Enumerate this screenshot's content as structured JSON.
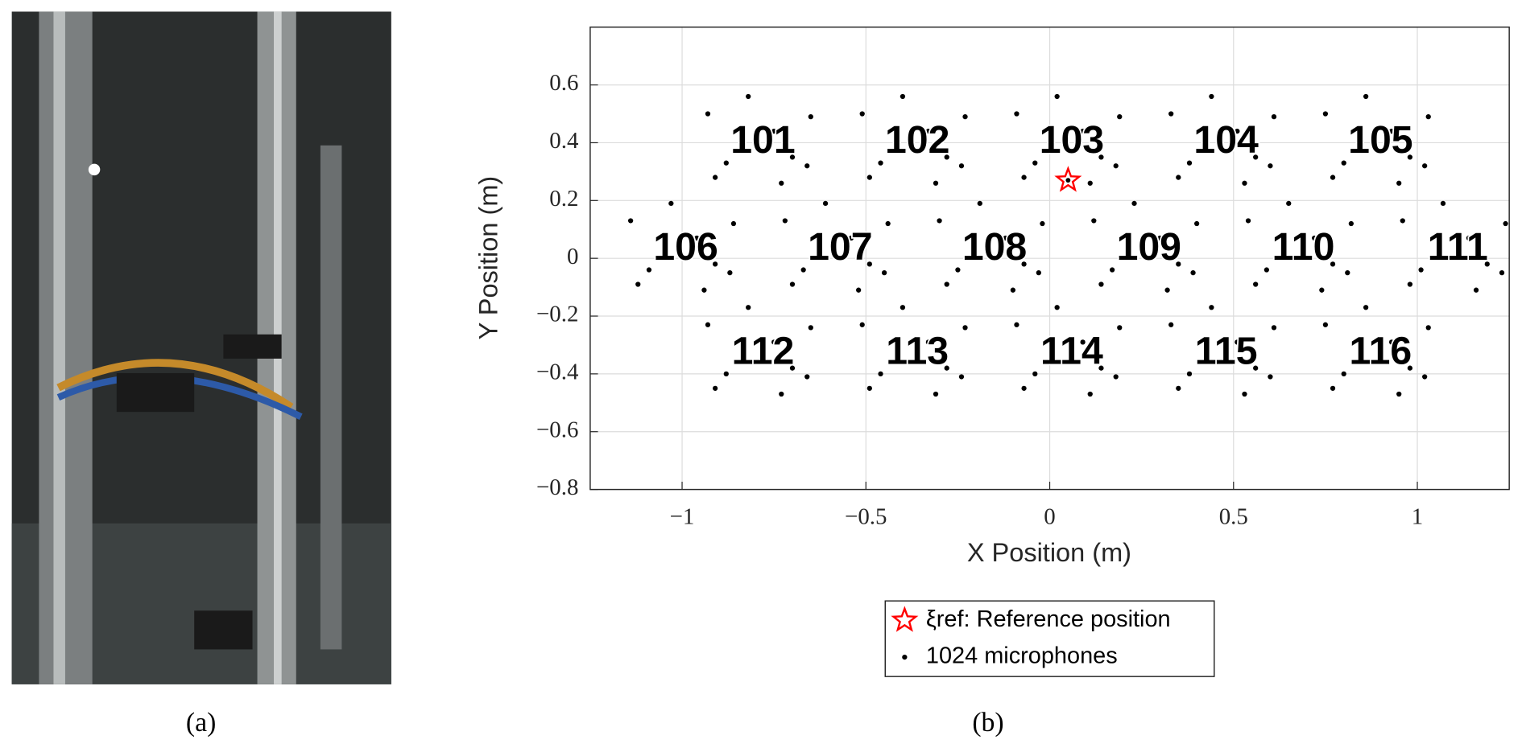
{
  "panels": {
    "a": {
      "caption": "(a)"
    },
    "b": {
      "caption": "(b)"
    }
  },
  "chart_data": {
    "type": "scatter",
    "xlabel": "X Position (m)",
    "ylabel": "Y Position (m)",
    "xlim": [
      -1.25,
      1.25
    ],
    "ylim": [
      -0.8,
      0.8
    ],
    "xticks": [
      {
        "value": -1,
        "label": "−1"
      },
      {
        "value": -0.5,
        "label": "−0.5"
      },
      0,
      0.5,
      1
    ],
    "yticks": [
      {
        "value": -0.8,
        "label": "−0.8"
      },
      {
        "value": -0.6,
        "label": "−0.6"
      },
      {
        "value": -0.4,
        "label": "−0.4"
      },
      {
        "value": -0.2,
        "label": "−0.2"
      },
      0,
      0.2,
      0.4,
      0.6
    ],
    "grid": true,
    "series": [
      {
        "name": "ξref: Reference position",
        "color": "#ff0000",
        "marker": "star",
        "x": [
          0.05
        ],
        "y": [
          0.27
        ]
      },
      {
        "name": "1024 microphones",
        "color": "#000000",
        "marker": "dot",
        "x": [
          -0.75,
          -0.84,
          -0.7,
          -0.88,
          -0.65,
          -0.93,
          -0.73,
          -0.82,
          -0.66,
          -0.91,
          -0.33,
          -0.42,
          -0.28,
          -0.46,
          -0.23,
          -0.51,
          -0.31,
          -0.4,
          -0.24,
          -0.49,
          0.09,
          0.0,
          0.14,
          -0.04,
          0.19,
          -0.09,
          0.11,
          0.02,
          0.18,
          -0.07,
          0.51,
          0.42,
          0.56,
          0.38,
          0.61,
          0.33,
          0.53,
          0.44,
          0.6,
          0.35,
          0.93,
          0.84,
          0.98,
          0.8,
          1.03,
          0.75,
          0.95,
          0.86,
          1.02,
          0.77,
          -0.96,
          -1.05,
          -0.91,
          -1.09,
          -0.86,
          -1.14,
          -0.94,
          -1.03,
          -0.87,
          -1.12,
          -0.54,
          -0.63,
          -0.49,
          -0.67,
          -0.44,
          -0.72,
          -0.52,
          -0.61,
          -0.45,
          -0.7,
          -0.12,
          -0.21,
          -0.07,
          -0.25,
          -0.02,
          -0.3,
          -0.1,
          -0.19,
          -0.03,
          -0.28,
          0.3,
          0.21,
          0.35,
          0.17,
          0.4,
          0.12,
          0.32,
          0.23,
          0.39,
          0.14,
          0.72,
          0.63,
          0.77,
          0.59,
          0.82,
          0.54,
          0.74,
          0.65,
          0.81,
          0.56,
          1.14,
          1.05,
          1.19,
          1.01,
          1.24,
          0.96,
          1.16,
          1.07,
          1.23,
          0.98,
          -0.75,
          -0.84,
          -0.7,
          -0.88,
          -0.65,
          -0.93,
          -0.73,
          -0.82,
          -0.66,
          -0.91,
          -0.33,
          -0.42,
          -0.28,
          -0.46,
          -0.23,
          -0.51,
          -0.31,
          -0.4,
          -0.24,
          -0.49,
          0.09,
          0.0,
          0.14,
          -0.04,
          0.19,
          -0.09,
          0.11,
          0.02,
          0.18,
          -0.07,
          0.51,
          0.42,
          0.56,
          0.38,
          0.61,
          0.33,
          0.53,
          0.44,
          0.6,
          0.35,
          0.93,
          0.84,
          0.98,
          0.8,
          1.03,
          0.75,
          0.95,
          0.86,
          1.02,
          0.77
        ],
        "y": [
          0.44,
          0.45,
          0.35,
          0.33,
          0.49,
          0.5,
          0.26,
          0.56,
          0.32,
          0.28,
          0.44,
          0.45,
          0.35,
          0.33,
          0.49,
          0.5,
          0.26,
          0.56,
          0.32,
          0.28,
          0.44,
          0.45,
          0.35,
          0.33,
          0.49,
          0.5,
          0.26,
          0.56,
          0.32,
          0.28,
          0.44,
          0.45,
          0.35,
          0.33,
          0.49,
          0.5,
          0.26,
          0.56,
          0.32,
          0.28,
          0.44,
          0.45,
          0.35,
          0.33,
          0.49,
          0.5,
          0.26,
          0.56,
          0.32,
          0.28,
          0.07,
          0.08,
          -0.02,
          -0.04,
          0.12,
          0.13,
          -0.11,
          0.19,
          -0.05,
          -0.09,
          0.07,
          0.08,
          -0.02,
          -0.04,
          0.12,
          0.13,
          -0.11,
          0.19,
          -0.05,
          -0.09,
          0.07,
          0.08,
          -0.02,
          -0.04,
          0.12,
          0.13,
          -0.11,
          0.19,
          -0.05,
          -0.09,
          0.07,
          0.08,
          -0.02,
          -0.04,
          0.12,
          0.13,
          -0.11,
          0.19,
          -0.05,
          -0.09,
          0.07,
          0.08,
          -0.02,
          -0.04,
          0.12,
          0.13,
          -0.11,
          0.19,
          -0.05,
          -0.09,
          0.07,
          0.08,
          -0.02,
          -0.04,
          0.12,
          0.13,
          -0.11,
          0.19,
          -0.05,
          -0.09,
          -0.29,
          -0.28,
          -0.38,
          -0.4,
          -0.24,
          -0.23,
          -0.47,
          -0.17,
          -0.41,
          -0.45,
          -0.29,
          -0.28,
          -0.38,
          -0.4,
          -0.24,
          -0.23,
          -0.47,
          -0.17,
          -0.41,
          -0.45,
          -0.29,
          -0.28,
          -0.38,
          -0.4,
          -0.24,
          -0.23,
          -0.47,
          -0.17,
          -0.41,
          -0.45,
          -0.29,
          -0.28,
          -0.38,
          -0.4,
          -0.24,
          -0.23,
          -0.47,
          -0.17,
          -0.41,
          -0.45,
          -0.29,
          -0.28,
          -0.38,
          -0.4,
          -0.24,
          -0.23,
          -0.47,
          -0.17,
          -0.41,
          -0.45
        ]
      }
    ],
    "annotations": [
      {
        "text": "101",
        "x": -0.78,
        "y": 0.4
      },
      {
        "text": "102",
        "x": -0.36,
        "y": 0.4
      },
      {
        "text": "103",
        "x": 0.06,
        "y": 0.4
      },
      {
        "text": "104",
        "x": 0.48,
        "y": 0.4
      },
      {
        "text": "105",
        "x": 0.9,
        "y": 0.4
      },
      {
        "text": "106",
        "x": -0.99,
        "y": 0.03
      },
      {
        "text": "107",
        "x": -0.57,
        "y": 0.03
      },
      {
        "text": "108",
        "x": -0.15,
        "y": 0.03
      },
      {
        "text": "109",
        "x": 0.27,
        "y": 0.03
      },
      {
        "text": "110",
        "x": 0.69,
        "y": 0.03
      },
      {
        "text": "111",
        "x": 1.11,
        "y": 0.03
      },
      {
        "text": "112",
        "x": -0.78,
        "y": -0.33
      },
      {
        "text": "113",
        "x": -0.36,
        "y": -0.33
      },
      {
        "text": "114",
        "x": 0.06,
        "y": -0.33
      },
      {
        "text": "115",
        "x": 0.48,
        "y": -0.33
      },
      {
        "text": "116",
        "x": 0.9,
        "y": -0.33
      }
    ]
  }
}
